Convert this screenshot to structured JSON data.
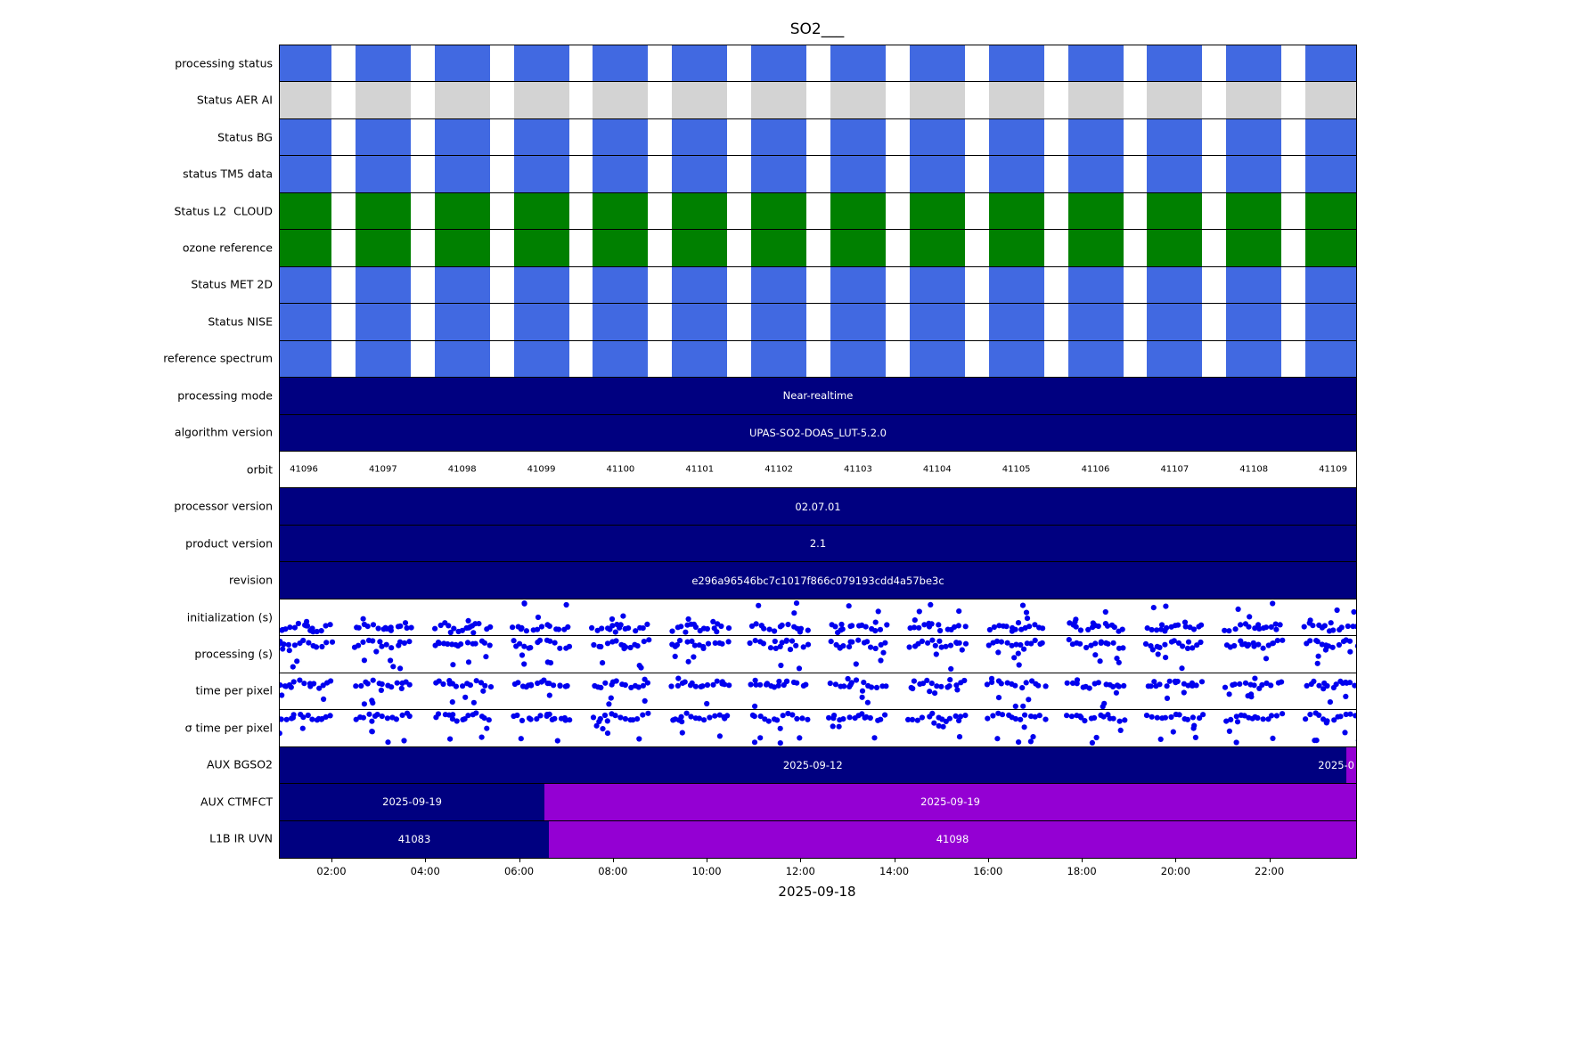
{
  "title": "SO2___",
  "xlabel": "2025-09-18",
  "colors": {
    "navy": "#000080",
    "blue": "#4169e1",
    "green": "#008000",
    "gray": "#d3d3d3",
    "purple": "#9400d3",
    "dot": "#0000ee",
    "frame": "#000000",
    "text_light": "#ffffff",
    "text_dark": "#000000"
  },
  "chart_data": {
    "type": "table",
    "title": "SO2___",
    "xlabel": "2025-09-18",
    "x_ticks": [
      "02:00",
      "04:00",
      "06:00",
      "08:00",
      "10:00",
      "12:00",
      "14:00",
      "16:00",
      "18:00",
      "20:00",
      "22:00"
    ],
    "orbit_numbers": [
      "41096",
      "41097",
      "41098",
      "41099",
      "41100",
      "41101",
      "41102",
      "41103",
      "41104",
      "41105",
      "41106",
      "41107",
      "41108",
      "41109"
    ],
    "rows": [
      {
        "id": "processing-status",
        "label": "processing status",
        "type": "pattern",
        "color_key": "blue"
      },
      {
        "id": "status-aer-ai",
        "label": "Status AER AI",
        "type": "pattern",
        "color_key": "gray"
      },
      {
        "id": "status-bg",
        "label": "Status BG",
        "type": "pattern",
        "color_key": "blue"
      },
      {
        "id": "status-tm5-data",
        "label": "status TM5 data",
        "type": "pattern",
        "color_key": "blue"
      },
      {
        "id": "status-l2-cloud",
        "label": "Status L2  CLOUD",
        "type": "pattern",
        "color_key": "green"
      },
      {
        "id": "ozone-reference",
        "label": "ozone reference",
        "type": "pattern",
        "color_key": "green"
      },
      {
        "id": "status-met-2d",
        "label": "Status MET 2D",
        "type": "pattern",
        "color_key": "blue"
      },
      {
        "id": "status-nise",
        "label": "Status NISE",
        "type": "pattern",
        "color_key": "blue"
      },
      {
        "id": "reference-spectrum",
        "label": "reference spectrum",
        "type": "pattern",
        "color_key": "blue"
      },
      {
        "id": "processing-mode",
        "label": "processing mode",
        "type": "solid",
        "color_key": "navy",
        "text": "Near-realtime"
      },
      {
        "id": "algorithm-version",
        "label": "algorithm version",
        "type": "solid",
        "color_key": "navy",
        "text": "UPAS-SO2-DOAS_LUT-5.2.0"
      },
      {
        "id": "orbit",
        "label": "orbit",
        "type": "orbits"
      },
      {
        "id": "processor-version",
        "label": "processor version",
        "type": "solid",
        "color_key": "navy",
        "text": "02.07.01"
      },
      {
        "id": "product-version",
        "label": "product version",
        "type": "solid",
        "color_key": "navy",
        "text": "2.1"
      },
      {
        "id": "revision",
        "label": "revision",
        "type": "solid",
        "color_key": "navy",
        "text": "e296a96546bc7c1017f866c079193cdd4a57be3c"
      },
      {
        "id": "initialization-s",
        "label": "initialization (s)",
        "type": "scatter",
        "seed": 7,
        "band_depth": 0.75
      },
      {
        "id": "processing-s",
        "label": "processing (s)",
        "type": "scatter",
        "seed": 13,
        "band_depth": 0.22
      },
      {
        "id": "time-per-pixel",
        "label": "time per pixel",
        "type": "scatter",
        "seed": 29,
        "band_depth": 0.3
      },
      {
        "id": "sigma-time-per-pixel",
        "label": "σ time per pixel",
        "type": "scatter",
        "seed": 41,
        "band_depth": 0.2
      },
      {
        "id": "aux-bgso2",
        "label": "AUX BGSO2",
        "type": "segments",
        "segments": [
          {
            "color_key": "navy",
            "start": 0,
            "end": 0.9905,
            "text": "2025-09-12"
          },
          {
            "color_key": "purple",
            "start": 0.9905,
            "end": 1,
            "text": "2025-0",
            "clipped": true
          }
        ]
      },
      {
        "id": "aux-ctmfct",
        "label": "AUX CTMFCT",
        "type": "segments",
        "segments": [
          {
            "color_key": "navy",
            "start": 0,
            "end": 0.246,
            "text": "2025-09-19"
          },
          {
            "color_key": "purple",
            "start": 0.246,
            "end": 1,
            "text": "2025-09-19"
          }
        ]
      },
      {
        "id": "l1b-ir-uvn",
        "label": "L1B IR UVN",
        "type": "segments",
        "segments": [
          {
            "color_key": "navy",
            "start": 0,
            "end": 0.25,
            "text": "41083"
          },
          {
            "color_key": "purple",
            "start": 0.25,
            "end": 1,
            "text": "41098"
          }
        ]
      }
    ]
  }
}
